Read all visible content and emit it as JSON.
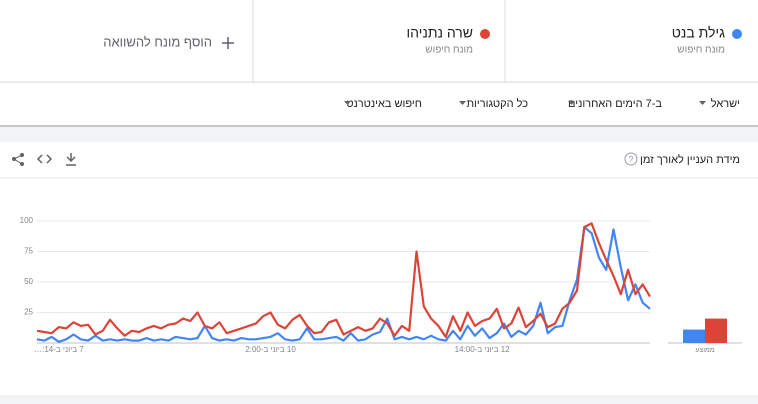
{
  "ui": {
    "term_subtitle": "מונח חיפוש",
    "add_term": "הוסף מונח להשוואה",
    "filters": [
      "ישראל",
      "ב-7 הימים האחרונים",
      "כל הקטגוריות",
      "חיפוש באינטרנט"
    ]
  },
  "chart_data": [
    {
      "type": "line",
      "title": "מידת העניין לאורך זמן",
      "categories": [
        null,
        null,
        null,
        "7 ביוני ב-14:…",
        null,
        null,
        null,
        null,
        null,
        null,
        null,
        null,
        null,
        null,
        null,
        null,
        null,
        null,
        null,
        null,
        null,
        null,
        null,
        null,
        null,
        null,
        null,
        null,
        null,
        null,
        null,
        null,
        "10 ביוני ב-2:00",
        null,
        null,
        null,
        null,
        null,
        null,
        null,
        null,
        null,
        null,
        null,
        null,
        null,
        null,
        null,
        null,
        null,
        null,
        null,
        null,
        null,
        null,
        null,
        null,
        null,
        null,
        null,
        null,
        "12 ביוני ב-14:00",
        null,
        null,
        null,
        null,
        null,
        null,
        null,
        null,
        null,
        null,
        null,
        null,
        null,
        null,
        null,
        null,
        null,
        null,
        null,
        null,
        null,
        null,
        null
      ],
      "ylim": [
        0,
        100
      ],
      "yticks": [
        25,
        50,
        75,
        100
      ],
      "grid": true,
      "series": [
        {
          "name": "גילת בנט",
          "color": "#4285f4",
          "values": [
            3,
            2,
            5,
            1,
            3,
            7,
            3,
            2,
            6,
            2,
            3,
            2,
            3,
            2,
            2,
            4,
            2,
            3,
            2,
            5,
            4,
            3,
            4,
            14,
            4,
            2,
            3,
            2,
            4,
            3,
            3,
            4,
            5,
            8,
            3,
            2,
            3,
            12,
            3,
            3,
            4,
            5,
            2,
            8,
            2,
            3,
            7,
            9,
            20,
            3,
            5,
            3,
            5,
            3,
            6,
            3,
            2,
            10,
            3,
            14,
            6,
            12,
            4,
            8,
            16,
            5,
            10,
            7,
            14,
            33,
            8,
            13,
            14,
            35,
            52,
            95,
            90,
            70,
            60,
            93,
            62,
            35,
            48,
            33,
            28
          ]
        },
        {
          "name": "שרה נתניהו",
          "color": "#db4437",
          "values": [
            10,
            9,
            8,
            13,
            12,
            17,
            14,
            15,
            7,
            10,
            19,
            12,
            6,
            10,
            9,
            12,
            14,
            12,
            15,
            16,
            20,
            18,
            25,
            14,
            12,
            17,
            8,
            10,
            12,
            14,
            16,
            22,
            25,
            15,
            12,
            19,
            23,
            14,
            8,
            9,
            17,
            19,
            7,
            10,
            13,
            10,
            12,
            20,
            16,
            6,
            14,
            10,
            75,
            30,
            20,
            14,
            5,
            22,
            10,
            25,
            14,
            18,
            20,
            28,
            12,
            16,
            29,
            13,
            18,
            24,
            13,
            16,
            28,
            33,
            43,
            95,
            98,
            82,
            68,
            55,
            40,
            60,
            40,
            48,
            38
          ]
        }
      ]
    },
    {
      "type": "bar",
      "categories": [
        "ממוצע"
      ],
      "ylim": [
        0,
        100
      ],
      "series": [
        {
          "color": "#4285f4",
          "values": [
            11
          ]
        },
        {
          "color": "#db4437",
          "values": [
            20
          ]
        }
      ]
    }
  ]
}
